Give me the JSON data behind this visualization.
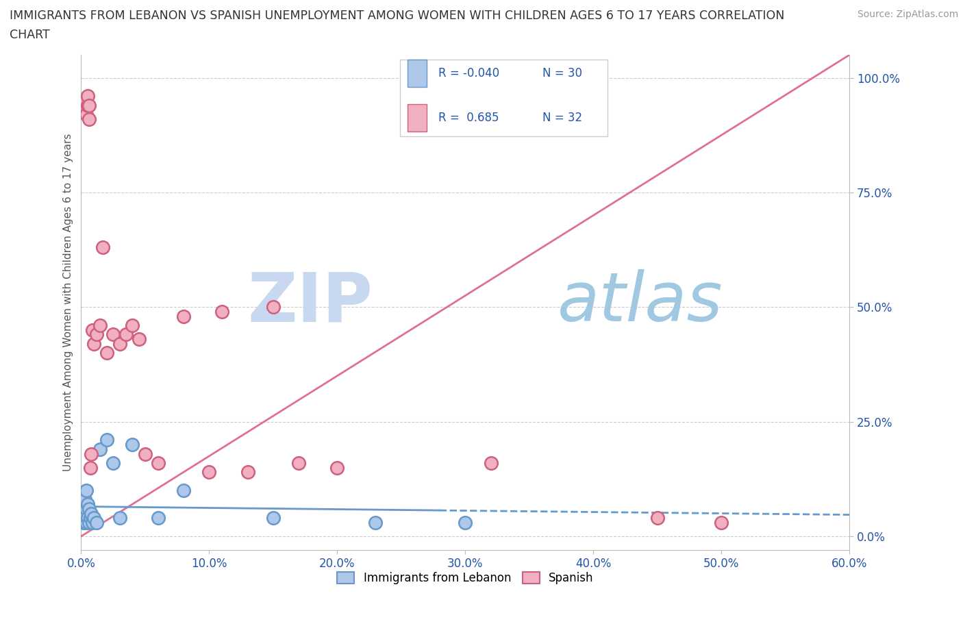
{
  "title_line1": "IMMIGRANTS FROM LEBANON VS SPANISH UNEMPLOYMENT AMONG WOMEN WITH CHILDREN AGES 6 TO 17 YEARS CORRELATION",
  "title_line2": "CHART",
  "source_text": "Source: ZipAtlas.com",
  "ylabel": "Unemployment Among Women with Children Ages 6 to 17 years",
  "xlim": [
    0.0,
    0.6
  ],
  "ylim": [
    -0.03,
    1.05
  ],
  "xtick_labels": [
    "0.0%",
    "10.0%",
    "20.0%",
    "30.0%",
    "40.0%",
    "50.0%",
    "60.0%"
  ],
  "xtick_vals": [
    0.0,
    0.1,
    0.2,
    0.3,
    0.4,
    0.5,
    0.6
  ],
  "ytick_labels": [
    "0.0%",
    "25.0%",
    "50.0%",
    "75.0%",
    "100.0%"
  ],
  "ytick_vals": [
    0.0,
    0.25,
    0.5,
    0.75,
    1.0
  ],
  "background_color": "#ffffff",
  "grid_color": "#cccccc",
  "lebanon_fill": "#adc8e8",
  "lebanon_edge": "#6699cc",
  "spanish_fill": "#f0b0c0",
  "spanish_edge": "#d06080",
  "trend_lebanon_color": "#6699cc",
  "trend_spanish_color": "#e07090",
  "watermark_zip": "ZIP",
  "watermark_atlas": "atlas",
  "watermark_color_zip": "#c8d8f0",
  "watermark_color_atlas": "#a0c0d8",
  "legend_R_leb": "-0.040",
  "legend_N_leb": "30",
  "legend_R_spa": "0.685",
  "legend_N_spa": "32",
  "legend_text_color": "#2255aa",
  "series1_name": "Immigrants from Lebanon",
  "series2_name": "Spanish",
  "leb_x": [
    0.001,
    0.001,
    0.002,
    0.002,
    0.002,
    0.003,
    0.003,
    0.003,
    0.004,
    0.004,
    0.004,
    0.005,
    0.005,
    0.006,
    0.006,
    0.007,
    0.008,
    0.009,
    0.01,
    0.012,
    0.015,
    0.02,
    0.025,
    0.03,
    0.04,
    0.06,
    0.08,
    0.15,
    0.23,
    0.3
  ],
  "leb_y": [
    0.04,
    0.07,
    0.03,
    0.06,
    0.09,
    0.03,
    0.05,
    0.08,
    0.03,
    0.06,
    0.1,
    0.04,
    0.07,
    0.03,
    0.06,
    0.04,
    0.05,
    0.03,
    0.04,
    0.03,
    0.19,
    0.21,
    0.16,
    0.04,
    0.2,
    0.04,
    0.1,
    0.04,
    0.03,
    0.03
  ],
  "spa_x": [
    0.003,
    0.003,
    0.004,
    0.005,
    0.005,
    0.006,
    0.006,
    0.007,
    0.008,
    0.009,
    0.01,
    0.012,
    0.015,
    0.017,
    0.02,
    0.025,
    0.03,
    0.035,
    0.04,
    0.045,
    0.05,
    0.06,
    0.08,
    0.1,
    0.11,
    0.13,
    0.15,
    0.17,
    0.2,
    0.32,
    0.45,
    0.5
  ],
  "spa_y": [
    0.93,
    0.95,
    0.92,
    0.94,
    0.96,
    0.91,
    0.94,
    0.15,
    0.18,
    0.45,
    0.42,
    0.44,
    0.46,
    0.63,
    0.4,
    0.44,
    0.42,
    0.44,
    0.46,
    0.43,
    0.18,
    0.16,
    0.48,
    0.14,
    0.49,
    0.14,
    0.5,
    0.16,
    0.15,
    0.16,
    0.04,
    0.03
  ]
}
